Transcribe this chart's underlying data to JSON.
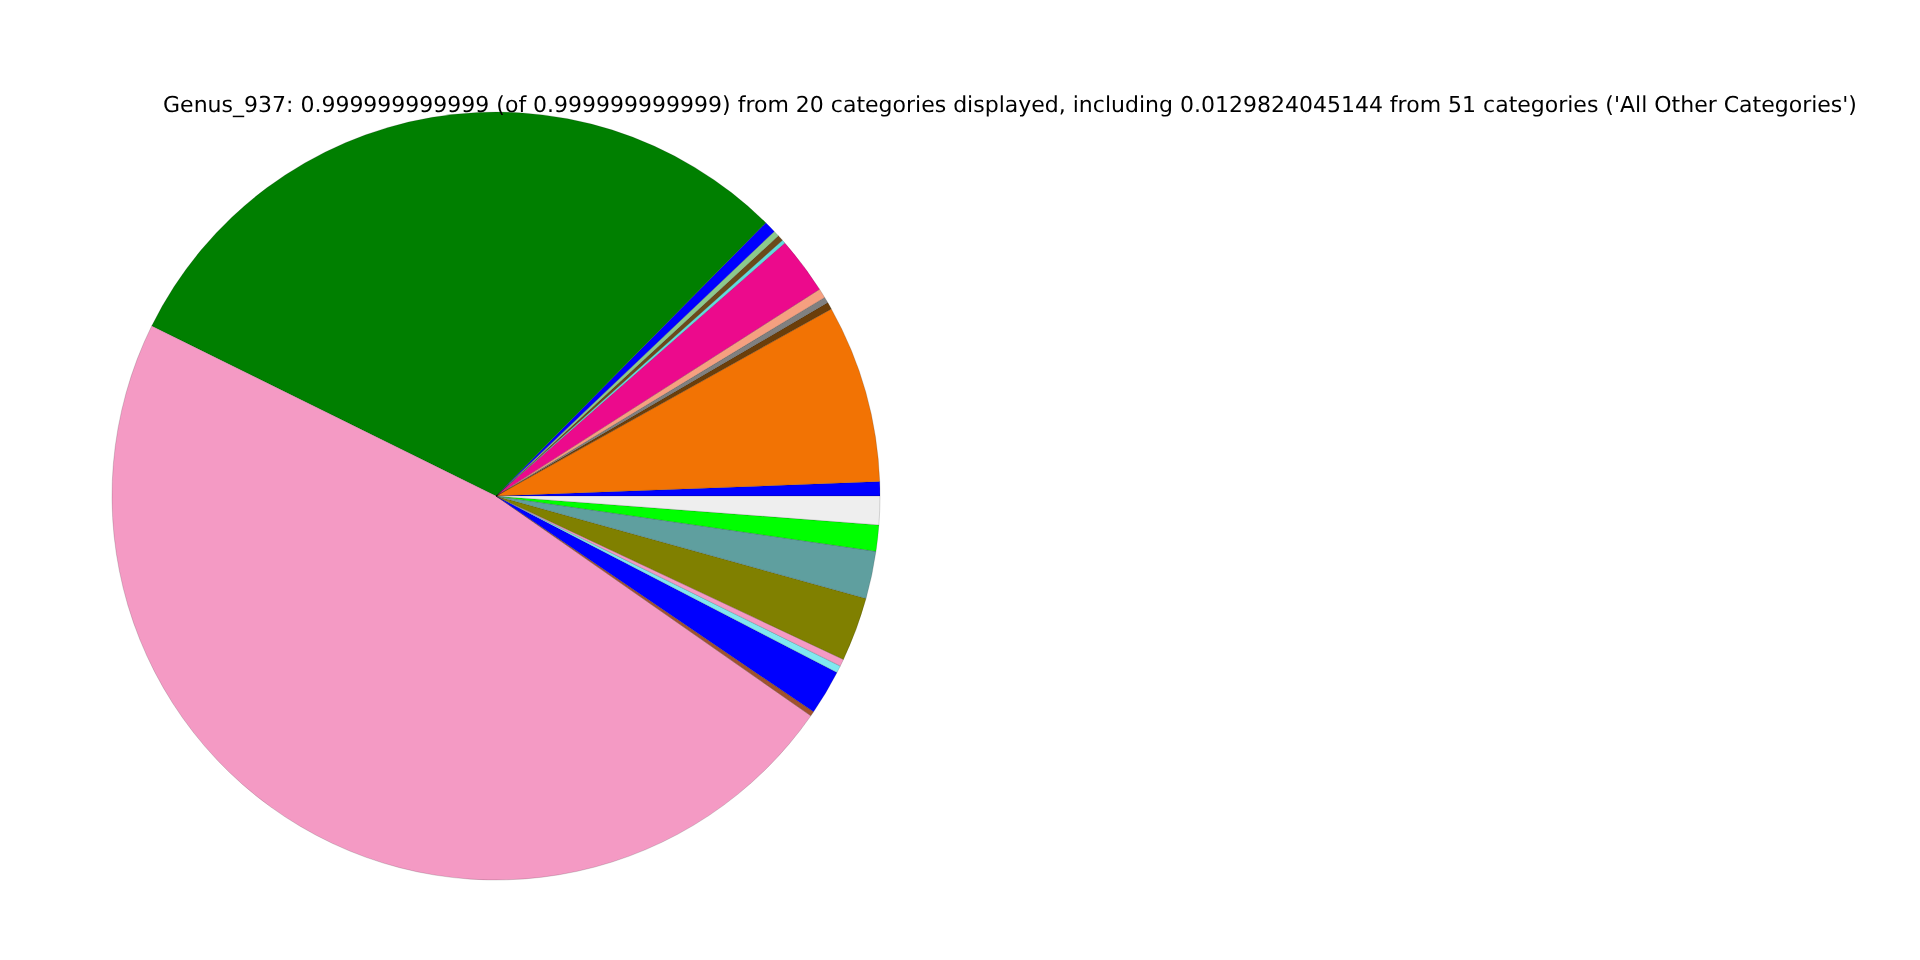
{
  "chart_data": {
    "type": "pie",
    "title": "Genus_937: 0.999999999999 (of 0.999999999999) from 20 categories displayed, including 0.0129824045144 from 51 categories ('All Other Categories')",
    "categories": [
      null,
      null,
      null,
      null,
      null,
      null,
      null,
      null,
      null,
      null,
      null,
      null,
      null,
      null,
      null,
      null,
      null,
      null,
      null,
      null
    ],
    "values": [
      0.6,
      7.5,
      0.3,
      0.25,
      0.4,
      2.4,
      0.15,
      0.25,
      0.25,
      0.5,
      30.1,
      47.6,
      0.2,
      1.9,
      0.3,
      0.3,
      2.7,
      2.0,
      1.1,
      1.2
    ],
    "colors": [
      "#0000ff",
      "#f27304",
      "#6b3e0a",
      "#808080",
      "#f5a080",
      "#ec0a8c",
      "#5fdcdc",
      "#6b4a1a",
      "#8cc98c",
      "#0000ff",
      "#007f00",
      "#f49ac4",
      "#a0522d",
      "#0000ff",
      "#80e8f0",
      "#f49ac4",
      "#808000",
      "#5f9f9f",
      "#00ff00",
      "#eeeeee"
    ]
  }
}
